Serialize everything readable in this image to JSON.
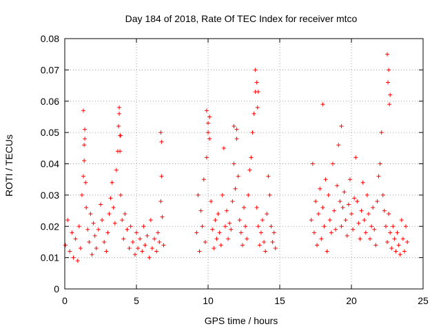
{
  "chart_data": {
    "type": "scatter",
    "title": "Day 184 of 2018, Rate Of TEC Index for receiver mtco",
    "xlabel": "GPS time / hours",
    "ylabel": "ROTI / TECUs",
    "xlim": [
      0,
      25
    ],
    "ylim": [
      0,
      0.08
    ],
    "xticks": [
      0,
      5,
      10,
      15,
      20,
      25
    ],
    "xtick_labels": [
      "0",
      "5",
      "10",
      "15",
      "20",
      "25"
    ],
    "yticks": [
      0,
      0.01,
      0.02,
      0.03,
      0.04,
      0.05,
      0.06,
      0.07,
      0.08
    ],
    "ytick_labels": [
      "0",
      "0.01",
      "0.02",
      "0.03",
      "0.04",
      "0.05",
      "0.06",
      "0.07",
      "0.08"
    ],
    "grid": true,
    "marker": "plus",
    "color": "#ff0000",
    "series": [
      {
        "name": "ROTI",
        "x": [
          0.05,
          0.2,
          0.35,
          0.5,
          0.6,
          0.75,
          0.9,
          1.0,
          1.1,
          1.2,
          1.3,
          1.35,
          1.4,
          1.45,
          1.5,
          1.6,
          1.7,
          1.8,
          1.9,
          2.0,
          2.1,
          2.2,
          2.35,
          2.5,
          2.6,
          2.75,
          2.9,
          3.0,
          3.1,
          3.2,
          3.3,
          3.4,
          3.5,
          3.6,
          3.7,
          3.75,
          3.8,
          3.85,
          3.9,
          4.0,
          4.1,
          4.2,
          4.35,
          4.5,
          4.6,
          4.75,
          4.9,
          5.0,
          5.1,
          5.25,
          5.4,
          5.5,
          5.6,
          5.75,
          5.9,
          6.0,
          6.1,
          6.25,
          6.4,
          6.5,
          6.6,
          6.7,
          6.75,
          6.8,
          6.9,
          9.2,
          9.3,
          9.4,
          9.5,
          9.6,
          9.7,
          9.8,
          9.9,
          10.0,
          10.1,
          10.2,
          10.3,
          10.4,
          10.5,
          10.6,
          10.7,
          10.8,
          10.9,
          11.0,
          11.1,
          11.2,
          11.3,
          11.4,
          11.5,
          11.6,
          11.7,
          11.8,
          11.9,
          12.0,
          12.1,
          12.2,
          12.3,
          12.4,
          12.5,
          12.6,
          12.7,
          12.8,
          12.9,
          13.0,
          13.1,
          13.2,
          13.3,
          13.4,
          13.5,
          13.6,
          13.7,
          13.8,
          13.9,
          14.0,
          14.1,
          14.2,
          14.3,
          14.4,
          14.5,
          14.6,
          14.7,
          17.2,
          17.3,
          17.4,
          17.5,
          17.6,
          17.7,
          17.8,
          17.9,
          18.0,
          18.1,
          18.2,
          18.3,
          18.4,
          18.5,
          18.6,
          18.7,
          18.8,
          18.9,
          19.0,
          19.1,
          19.2,
          19.3,
          19.4,
          19.5,
          19.6,
          19.7,
          19.8,
          19.9,
          20.0,
          20.1,
          20.2,
          20.3,
          20.4,
          20.5,
          20.6,
          20.7,
          20.8,
          20.9,
          21.0,
          21.1,
          21.2,
          21.3,
          21.4,
          21.5,
          21.6,
          21.7,
          21.8,
          21.9,
          22.0,
          22.1,
          22.2,
          22.3,
          22.4,
          22.5,
          22.6,
          22.7,
          22.8,
          22.9,
          23.0,
          23.1,
          23.2,
          23.3,
          23.4,
          23.5,
          23.6,
          23.7,
          23.8,
          23.9,
          1.3,
          1.4,
          1.35,
          3.8,
          3.9,
          3.85,
          6.7,
          6.75,
          9.9,
          10.0,
          10.1,
          11.8,
          12.0,
          13.3,
          13.4,
          13.5,
          13.45,
          18.0,
          19.3,
          22.5,
          22.6,
          22.55,
          22.7,
          22.65
        ],
        "y": [
          0.014,
          0.022,
          0.012,
          0.018,
          0.01,
          0.016,
          0.009,
          0.02,
          0.013,
          0.03,
          0.036,
          0.041,
          0.048,
          0.034,
          0.026,
          0.019,
          0.015,
          0.024,
          0.011,
          0.021,
          0.017,
          0.013,
          0.019,
          0.027,
          0.022,
          0.015,
          0.012,
          0.018,
          0.024,
          0.029,
          0.034,
          0.026,
          0.021,
          0.038,
          0.044,
          0.052,
          0.056,
          0.049,
          0.03,
          0.022,
          0.016,
          0.024,
          0.019,
          0.013,
          0.02,
          0.015,
          0.011,
          0.018,
          0.013,
          0.016,
          0.012,
          0.02,
          0.014,
          0.017,
          0.01,
          0.022,
          0.013,
          0.016,
          0.012,
          0.018,
          0.015,
          0.028,
          0.036,
          0.023,
          0.014,
          0.018,
          0.03,
          0.012,
          0.025,
          0.02,
          0.035,
          0.015,
          0.042,
          0.05,
          0.055,
          0.028,
          0.019,
          0.013,
          0.022,
          0.016,
          0.024,
          0.018,
          0.014,
          0.03,
          0.045,
          0.02,
          0.025,
          0.016,
          0.021,
          0.019,
          0.028,
          0.04,
          0.032,
          0.048,
          0.036,
          0.022,
          0.018,
          0.014,
          0.026,
          0.02,
          0.016,
          0.03,
          0.038,
          0.042,
          0.05,
          0.056,
          0.063,
          0.026,
          0.02,
          0.014,
          0.018,
          0.022,
          0.015,
          0.012,
          0.024,
          0.036,
          0.03,
          0.02,
          0.015,
          0.018,
          0.013,
          0.022,
          0.04,
          0.018,
          0.028,
          0.014,
          0.024,
          0.032,
          0.016,
          0.026,
          0.02,
          0.035,
          0.012,
          0.03,
          0.022,
          0.018,
          0.04,
          0.025,
          0.019,
          0.033,
          0.046,
          0.028,
          0.02,
          0.026,
          0.031,
          0.022,
          0.017,
          0.027,
          0.035,
          0.024,
          0.019,
          0.029,
          0.042,
          0.028,
          0.021,
          0.016,
          0.025,
          0.034,
          0.022,
          0.018,
          0.03,
          0.024,
          0.016,
          0.02,
          0.026,
          0.019,
          0.014,
          0.028,
          0.036,
          0.04,
          0.05,
          0.03,
          0.025,
          0.02,
          0.015,
          0.024,
          0.018,
          0.013,
          0.02,
          0.016,
          0.012,
          0.018,
          0.014,
          0.011,
          0.022,
          0.016,
          0.012,
          0.02,
          0.015,
          0.057,
          0.051,
          0.046,
          0.058,
          0.049,
          0.044,
          0.05,
          0.047,
          0.057,
          0.053,
          0.048,
          0.052,
          0.051,
          0.07,
          0.066,
          0.063,
          0.058,
          0.059,
          0.052,
          0.075,
          0.07,
          0.066,
          0.062,
          0.059
        ]
      }
    ]
  }
}
